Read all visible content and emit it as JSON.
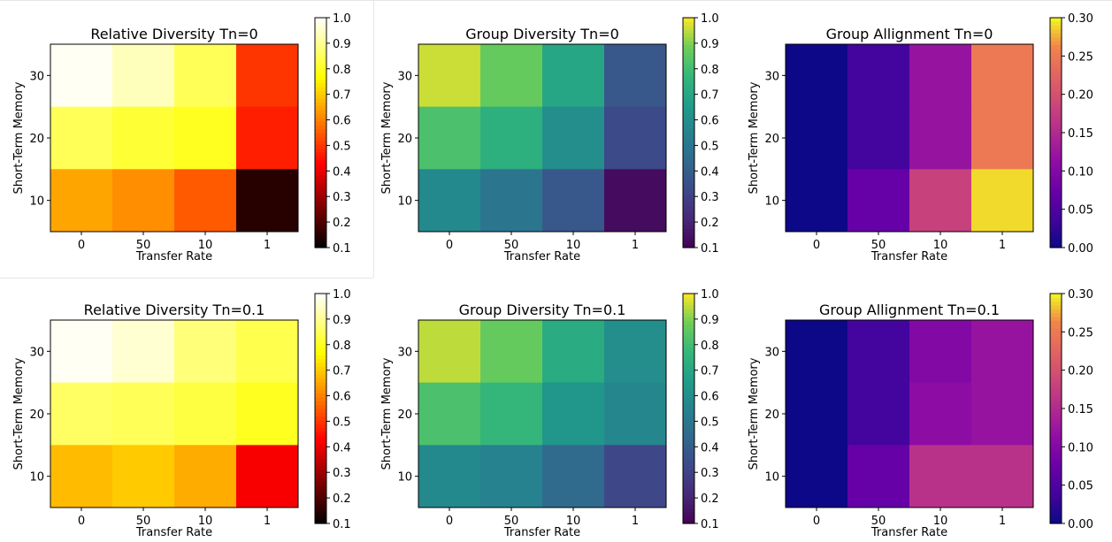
{
  "chart_data": [
    {
      "type": "heatmap",
      "title": "Relative Diversity Tn=0",
      "xlabel": "Transfer Rate",
      "ylabel": "Short-Term Memory",
      "x_categories": [
        "0",
        "50",
        "10",
        "1"
      ],
      "y_categories": [
        "30",
        "20",
        "10"
      ],
      "values": [
        [
          0.99,
          0.94,
          0.85,
          0.5
        ],
        [
          0.85,
          0.82,
          0.8,
          0.47
        ],
        [
          0.65,
          0.62,
          0.55,
          0.15
        ]
      ],
      "colormap": "hot",
      "clim": [
        0.1,
        1.0
      ],
      "colorbar_ticks": [
        "0.1",
        "0.2",
        "0.3",
        "0.4",
        "0.5",
        "0.6",
        "0.7",
        "0.8",
        "0.9",
        "1.0"
      ]
    },
    {
      "type": "heatmap",
      "title": "Group Diversity Tn=0",
      "xlabel": "Transfer Rate",
      "ylabel": "Short-Term Memory",
      "x_categories": [
        "0",
        "50",
        "10",
        "1"
      ],
      "y_categories": [
        "30",
        "20",
        "10"
      ],
      "values": [
        [
          0.96,
          0.87,
          0.7,
          0.38
        ],
        [
          0.82,
          0.74,
          0.6,
          0.33
        ],
        [
          0.58,
          0.5,
          0.38,
          0.13
        ]
      ],
      "colormap": "viridis",
      "clim": [
        0.1,
        1.0
      ],
      "colorbar_ticks": [
        "0.1",
        "0.2",
        "0.3",
        "0.4",
        "0.5",
        "0.6",
        "0.7",
        "0.8",
        "0.9",
        "1.0"
      ]
    },
    {
      "type": "heatmap",
      "title": "Group Allignment Tn=0",
      "xlabel": "Transfer Rate",
      "ylabel": "Short-Term Memory",
      "x_categories": [
        "0",
        "50",
        "10",
        "1"
      ],
      "y_categories": [
        "30",
        "20",
        "10"
      ],
      "values": [
        [
          0.0,
          0.04,
          0.12,
          0.25
        ],
        [
          0.0,
          0.04,
          0.12,
          0.25
        ],
        [
          0.0,
          0.07,
          0.18,
          0.29
        ]
      ],
      "colormap": "plasma",
      "clim": [
        0.0,
        0.3
      ],
      "colorbar_ticks": [
        "0.00",
        "0.05",
        "0.10",
        "0.15",
        "0.20",
        "0.25",
        "0.30"
      ]
    },
    {
      "type": "heatmap",
      "title": "Relative Diversity Tn=0.1",
      "xlabel": "Transfer Rate",
      "ylabel": "Short-Term Memory",
      "x_categories": [
        "0",
        "50",
        "10",
        "1"
      ],
      "y_categories": [
        "30",
        "20",
        "10"
      ],
      "values": [
        [
          0.99,
          0.96,
          0.88,
          0.84
        ],
        [
          0.86,
          0.85,
          0.83,
          0.8
        ],
        [
          0.68,
          0.7,
          0.66,
          0.42
        ]
      ],
      "colormap": "hot",
      "clim": [
        0.1,
        1.0
      ],
      "colorbar_ticks": [
        "0.1",
        "0.2",
        "0.3",
        "0.4",
        "0.5",
        "0.6",
        "0.7",
        "0.8",
        "0.9",
        "1.0"
      ]
    },
    {
      "type": "heatmap",
      "title": "Group Diversity Tn=0.1",
      "xlabel": "Transfer Rate",
      "ylabel": "Short-Term Memory",
      "x_categories": [
        "0",
        "50",
        "10",
        "1"
      ],
      "y_categories": [
        "30",
        "20",
        "10"
      ],
      "values": [
        [
          0.95,
          0.87,
          0.72,
          0.6
        ],
        [
          0.82,
          0.77,
          0.63,
          0.57
        ],
        [
          0.58,
          0.55,
          0.45,
          0.32
        ]
      ],
      "colormap": "viridis",
      "clim": [
        0.1,
        1.0
      ],
      "colorbar_ticks": [
        "0.1",
        "0.2",
        "0.3",
        "0.4",
        "0.5",
        "0.6",
        "0.7",
        "0.8",
        "0.9",
        "1.0"
      ]
    },
    {
      "type": "heatmap",
      "title": "Group Allignment Tn=0.1",
      "xlabel": "Transfer Rate",
      "ylabel": "Short-Term Memory",
      "x_categories": [
        "0",
        "50",
        "10",
        "1"
      ],
      "y_categories": [
        "30",
        "20",
        "10"
      ],
      "values": [
        [
          0.0,
          0.04,
          0.1,
          0.12
        ],
        [
          0.0,
          0.04,
          0.11,
          0.12
        ],
        [
          0.0,
          0.07,
          0.16,
          0.16
        ]
      ],
      "colormap": "plasma",
      "clim": [
        0.0,
        0.3
      ],
      "colorbar_ticks": [
        "0.00",
        "0.05",
        "0.10",
        "0.15",
        "0.20",
        "0.25",
        "0.30"
      ]
    }
  ]
}
